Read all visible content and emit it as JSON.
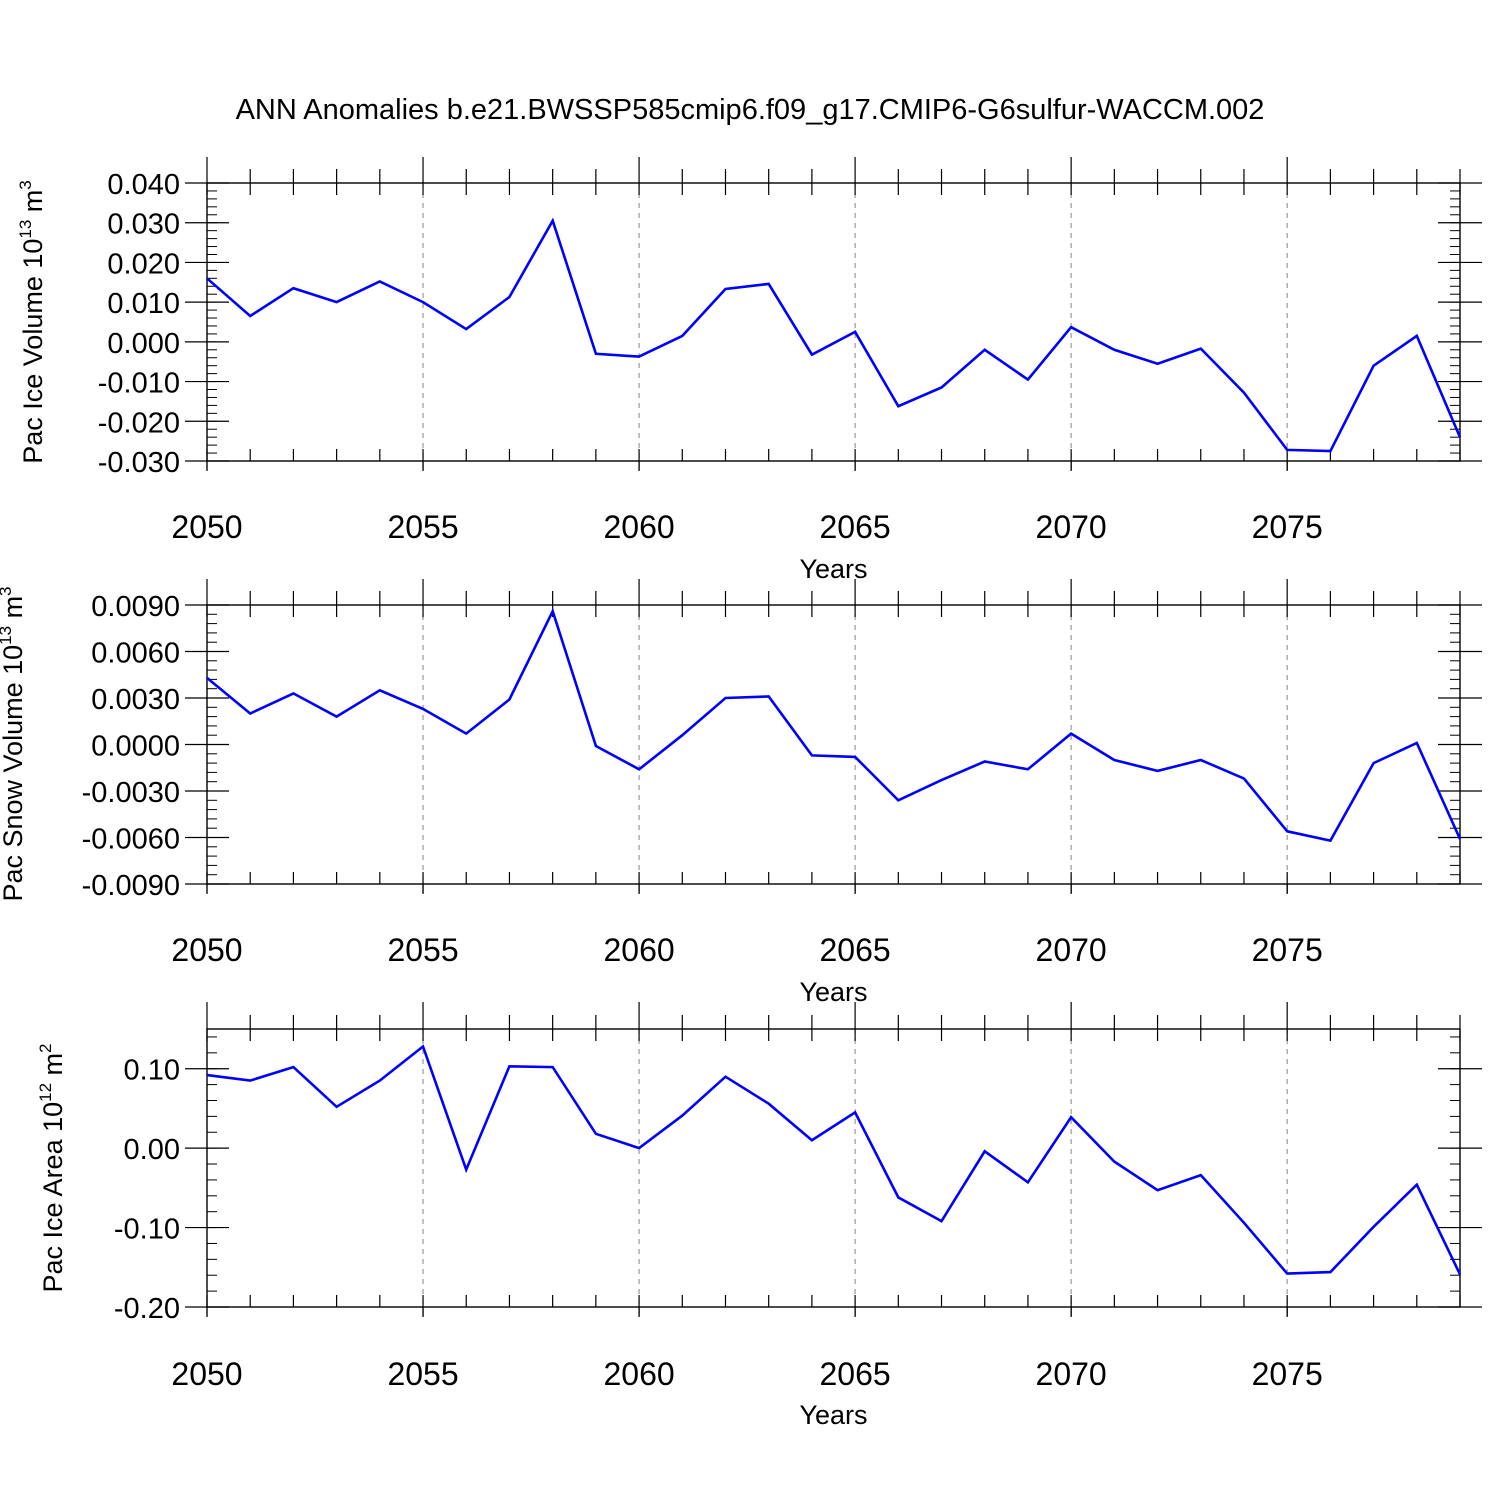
{
  "figure_title": "ANN Anomalies b.e21.BWSSP585cmip6.f09_g17.CMIP6-G6sulfur-WACCM.002",
  "colors": {
    "series": "#0000ff",
    "axis": "#000000",
    "grid": "#999999"
  },
  "chart_data": [
    {
      "type": "line",
      "ylabel": {
        "text": "Pac Ice Volume 10",
        "exp": "13",
        "unit": " m",
        "unit_exp": "3"
      },
      "xlabel": "Years",
      "xlim": [
        2050,
        2079
      ],
      "ylim": [
        -0.03,
        0.04
      ],
      "yticks": [
        0.04,
        0.03,
        0.02,
        0.01,
        0.0,
        -0.01,
        -0.02,
        -0.03
      ],
      "ytick_labels": [
        "0.040",
        "0.030",
        "0.020",
        "0.010",
        "0.000",
        "-0.010",
        "-0.020",
        "-0.030"
      ],
      "xticks": [
        2050,
        2055,
        2060,
        2065,
        2070,
        2075
      ],
      "xtick_labels": [
        "2050",
        "2055",
        "2060",
        "2065",
        "2070",
        "2075"
      ],
      "vgrid": [
        2055,
        2060,
        2065,
        2070,
        2075
      ],
      "x": [
        2050,
        2051,
        2052,
        2053,
        2054,
        2055,
        2056,
        2057,
        2058,
        2059,
        2060,
        2061,
        2062,
        2063,
        2064,
        2065,
        2066,
        2067,
        2068,
        2069,
        2070,
        2071,
        2072,
        2073,
        2074,
        2075,
        2076,
        2077,
        2078,
        2079
      ],
      "values": [
        0.016,
        0.0065,
        0.0135,
        0.01,
        0.0152,
        0.01,
        0.0032,
        0.0113,
        0.0305,
        -0.003,
        -0.0037,
        0.0015,
        0.0133,
        0.0146,
        -0.0032,
        0.0025,
        -0.0162,
        -0.0115,
        -0.002,
        -0.0095,
        0.0037,
        -0.002,
        -0.0055,
        -0.0017,
        -0.0128,
        -0.0272,
        -0.0275,
        -0.006,
        0.0015,
        -0.024
      ]
    },
    {
      "type": "line",
      "ylabel": {
        "text": "Pac Snow Volume 10",
        "exp": "13",
        "unit": " m",
        "unit_exp": "3"
      },
      "xlabel": "Years",
      "xlim": [
        2050,
        2079
      ],
      "ylim": [
        -0.009,
        0.009
      ],
      "yticks": [
        0.009,
        0.006,
        0.003,
        0.0,
        -0.003,
        -0.006,
        -0.009
      ],
      "ytick_labels": [
        "0.0090",
        "0.0060",
        "0.0030",
        "0.0000",
        "-0.0030",
        "-0.0060",
        "-0.0090"
      ],
      "xticks": [
        2050,
        2055,
        2060,
        2065,
        2070,
        2075
      ],
      "xtick_labels": [
        "2050",
        "2055",
        "2060",
        "2065",
        "2070",
        "2075"
      ],
      "vgrid": [
        2055,
        2060,
        2065,
        2070,
        2075
      ],
      "x": [
        2050,
        2051,
        2052,
        2053,
        2054,
        2055,
        2056,
        2057,
        2058,
        2059,
        2060,
        2061,
        2062,
        2063,
        2064,
        2065,
        2066,
        2067,
        2068,
        2069,
        2070,
        2071,
        2072,
        2073,
        2074,
        2075,
        2076,
        2077,
        2078,
        2079
      ],
      "values": [
        0.0043,
        0.002,
        0.0033,
        0.0018,
        0.0035,
        0.0023,
        0.0007,
        0.0029,
        0.0086,
        -0.0001,
        -0.0016,
        0.0006,
        0.003,
        0.0031,
        -0.0007,
        -0.0008,
        -0.0036,
        -0.0023,
        -0.0011,
        -0.0016,
        0.0007,
        -0.001,
        -0.0017,
        -0.001,
        -0.0022,
        -0.0056,
        -0.0062,
        -0.0012,
        0.0001,
        -0.0061
      ]
    },
    {
      "type": "line",
      "ylabel": {
        "text": "Pac Ice Area 10",
        "exp": "12",
        "unit": " m",
        "unit_exp": "2"
      },
      "xlabel": "Years",
      "xlim": [
        2050,
        2079
      ],
      "ylim": [
        -0.2,
        0.15
      ],
      "yticks": [
        0.1,
        0.0,
        -0.1,
        -0.2
      ],
      "ytick_labels": [
        "0.10",
        "0.00",
        "-0.10",
        "-0.20"
      ],
      "xticks": [
        2050,
        2055,
        2060,
        2065,
        2070,
        2075
      ],
      "xtick_labels": [
        "2050",
        "2055",
        "2060",
        "2065",
        "2070",
        "2075"
      ],
      "vgrid": [
        2055,
        2060,
        2065,
        2070,
        2075
      ],
      "x": [
        2050,
        2051,
        2052,
        2053,
        2054,
        2055,
        2056,
        2057,
        2058,
        2059,
        2060,
        2061,
        2062,
        2063,
        2064,
        2065,
        2066,
        2067,
        2068,
        2069,
        2070,
        2071,
        2072,
        2073,
        2074,
        2075,
        2076,
        2077,
        2078,
        2079
      ],
      "values": [
        0.092,
        0.085,
        0.102,
        0.052,
        0.085,
        0.128,
        -0.027,
        0.103,
        0.102,
        0.018,
        0.0,
        0.041,
        0.09,
        0.056,
        0.01,
        0.045,
        -0.062,
        -0.092,
        -0.004,
        -0.043,
        0.039,
        -0.017,
        -0.053,
        -0.034,
        -0.094,
        -0.158,
        -0.156,
        -0.099,
        -0.046,
        -0.159
      ]
    }
  ]
}
